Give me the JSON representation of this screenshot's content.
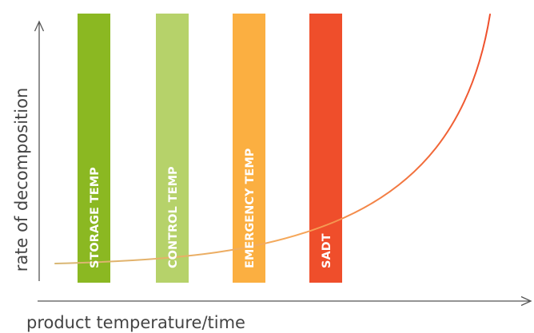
{
  "axes": {
    "x_title": "product temperature/time",
    "y_title": "rate of decomposition"
  },
  "bars": [
    {
      "label": "STORAGE TEMP",
      "color": "#8bb822"
    },
    {
      "label": "CONTROL TEMP",
      "color": "#b6d26a"
    },
    {
      "label": "EMERGENCY TEMP",
      "color": "#fbaf41"
    },
    {
      "label": "SADT",
      "color": "#ef4e2b"
    }
  ],
  "curve": {
    "colors": [
      "#d8b774",
      "#f6a85a",
      "#ef4e2b"
    ]
  }
}
